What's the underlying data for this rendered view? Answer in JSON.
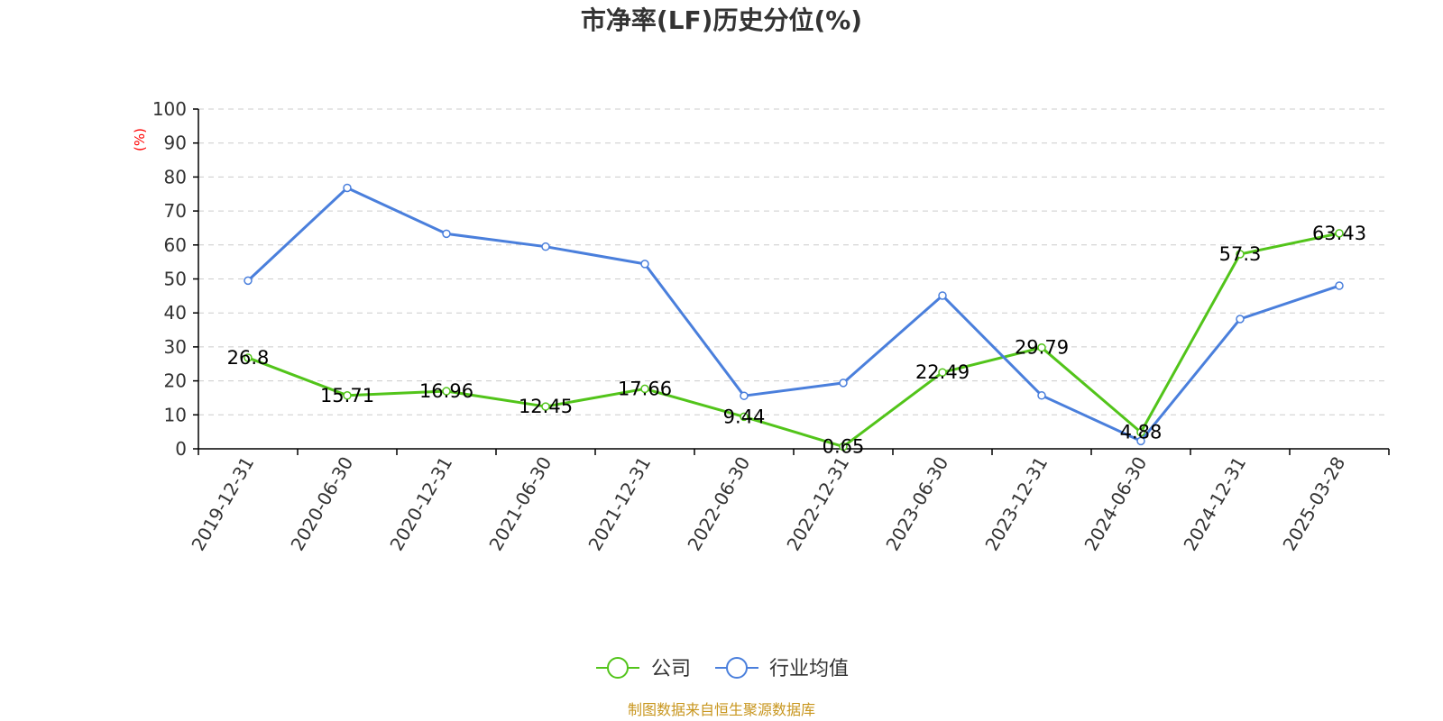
{
  "chart_data": {
    "type": "line",
    "title": "市净率(LF)历史分位(%)",
    "ylabel": "(%)",
    "xlabel": "",
    "ylim": [
      0,
      100
    ],
    "yticks": [
      0,
      10,
      20,
      30,
      40,
      50,
      60,
      70,
      80,
      90,
      100
    ],
    "grid": true,
    "legend_position": "bottom",
    "categories": [
      "2019-12-31",
      "2020-06-30",
      "2020-12-31",
      "2021-06-30",
      "2021-12-31",
      "2022-06-30",
      "2022-12-31",
      "2023-06-30",
      "2023-12-31",
      "2024-06-30",
      "2024-12-31",
      "2025-03-28"
    ],
    "series": [
      {
        "name": "公司",
        "color": "#52c41a",
        "values": [
          26.8,
          15.71,
          16.96,
          12.45,
          17.66,
          9.44,
          0.65,
          22.49,
          29.79,
          4.88,
          57.3,
          63.43
        ],
        "labels": [
          "26.8",
          "15.71",
          "16.96",
          "12.45",
          "17.66",
          "9.44",
          "0.65",
          "22.49",
          "29.79",
          "4.88",
          "57.3",
          "63.43"
        ]
      },
      {
        "name": "行业均值",
        "color": "#4a7fdc",
        "values": [
          49.5,
          76.8,
          63.3,
          59.5,
          54.4,
          15.6,
          19.4,
          45.1,
          15.7,
          2.3,
          38.2,
          48.0
        ]
      }
    ]
  },
  "source_text": "制图数据来自恒生聚源数据库",
  "source_color": "#c8961e"
}
